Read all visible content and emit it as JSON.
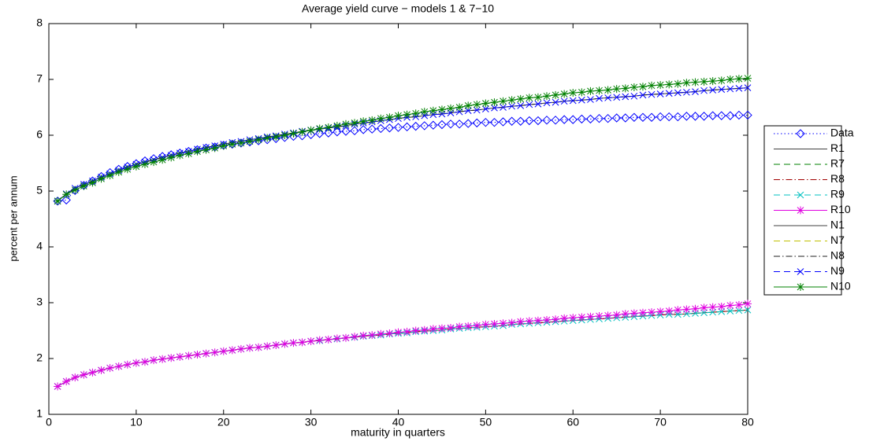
{
  "chart_data": {
    "type": "line",
    "title": "Average yield curve − models 1 & 7−10",
    "x_label": "maturity in quarters",
    "y_label": "percent per annum",
    "xlim": [
      0,
      80
    ],
    "xticks": [
      0,
      10,
      20,
      30,
      40,
      50,
      60,
      70,
      80
    ],
    "ylim": [
      1,
      8
    ],
    "yticks": [
      1,
      2,
      3,
      4,
      5,
      6,
      7,
      8
    ],
    "grid": false,
    "legend": "outside-right",
    "x": [
      1,
      2,
      3,
      4,
      5,
      6,
      7,
      8,
      9,
      10,
      11,
      12,
      13,
      14,
      15,
      16,
      17,
      18,
      19,
      20,
      21,
      22,
      23,
      24,
      25,
      26,
      27,
      28,
      29,
      30,
      31,
      32,
      33,
      34,
      35,
      36,
      37,
      38,
      39,
      40,
      41,
      42,
      43,
      44,
      45,
      46,
      47,
      48,
      49,
      50,
      51,
      52,
      53,
      54,
      55,
      56,
      57,
      58,
      59,
      60,
      61,
      62,
      63,
      64,
      65,
      66,
      67,
      68,
      69,
      70,
      71,
      72,
      73,
      74,
      75,
      76,
      77,
      78,
      79,
      80
    ],
    "series": [
      {
        "name": "Data",
        "color": "#0000ff",
        "linestyle": "dotted",
        "marker": "diamond",
        "values": [
          4.82,
          4.84,
          5.01,
          5.1,
          5.18,
          5.26,
          5.33,
          5.39,
          5.44,
          5.49,
          5.54,
          5.58,
          5.62,
          5.65,
          5.68,
          5.71,
          5.74,
          5.77,
          5.79,
          5.82,
          5.84,
          5.86,
          5.88,
          5.9,
          5.92,
          5.94,
          5.96,
          5.98,
          5.99,
          6.01,
          6.03,
          6.04,
          6.06,
          6.07,
          6.08,
          6.1,
          6.11,
          6.12,
          6.13,
          6.14,
          6.15,
          6.16,
          6.17,
          6.18,
          6.19,
          6.2,
          6.2,
          6.21,
          6.22,
          6.23,
          6.23,
          6.24,
          6.25,
          6.25,
          6.26,
          6.26,
          6.27,
          6.27,
          6.28,
          6.28,
          6.29,
          6.29,
          6.3,
          6.3,
          6.31,
          6.31,
          6.32,
          6.32,
          6.32,
          6.33,
          6.33,
          6.33,
          6.34,
          6.34,
          6.34,
          6.35,
          6.35,
          6.35,
          6.36,
          6.36
        ]
      },
      {
        "name": "R1",
        "color": "#404040",
        "linestyle": "solid",
        "marker": "none",
        "values": [
          1.5,
          1.59,
          1.66,
          1.71,
          1.75,
          1.79,
          1.83,
          1.86,
          1.89,
          1.92,
          1.94,
          1.97,
          1.99,
          2.01,
          2.03,
          2.05,
          2.07,
          2.09,
          2.11,
          2.13,
          2.15,
          2.17,
          2.19,
          2.2,
          2.22,
          2.24,
          2.26,
          2.28,
          2.29,
          2.31,
          2.32,
          2.34,
          2.35,
          2.37,
          2.38,
          2.4,
          2.41,
          2.42,
          2.44,
          2.45,
          2.46,
          2.48,
          2.49,
          2.5,
          2.51,
          2.53,
          2.54,
          2.55,
          2.56,
          2.57,
          2.58,
          2.59,
          2.61,
          2.62,
          2.63,
          2.64,
          2.65,
          2.66,
          2.67,
          2.68,
          2.69,
          2.7,
          2.71,
          2.72,
          2.73,
          2.74,
          2.75,
          2.76,
          2.77,
          2.78,
          2.79,
          2.79,
          2.8,
          2.81,
          2.82,
          2.83,
          2.84,
          2.85,
          2.86,
          2.87
        ]
      },
      {
        "name": "R7",
        "color": "#008000",
        "linestyle": "dashed",
        "marker": "none",
        "values": [
          1.5,
          1.59,
          1.66,
          1.71,
          1.75,
          1.79,
          1.83,
          1.86,
          1.89,
          1.92,
          1.94,
          1.97,
          1.99,
          2.01,
          2.03,
          2.05,
          2.07,
          2.09,
          2.11,
          2.13,
          2.15,
          2.17,
          2.19,
          2.2,
          2.22,
          2.24,
          2.26,
          2.28,
          2.29,
          2.31,
          2.32,
          2.34,
          2.35,
          2.37,
          2.38,
          2.4,
          2.41,
          2.42,
          2.44,
          2.45,
          2.46,
          2.48,
          2.49,
          2.5,
          2.51,
          2.53,
          2.54,
          2.55,
          2.56,
          2.57,
          2.58,
          2.59,
          2.61,
          2.62,
          2.63,
          2.64,
          2.65,
          2.66,
          2.67,
          2.68,
          2.69,
          2.7,
          2.71,
          2.72,
          2.73,
          2.74,
          2.75,
          2.76,
          2.77,
          2.78,
          2.79,
          2.79,
          2.8,
          2.81,
          2.82,
          2.83,
          2.84,
          2.85,
          2.86,
          2.87
        ]
      },
      {
        "name": "R8",
        "color": "#a00000",
        "linestyle": "dashdot",
        "marker": "none",
        "values": [
          1.5,
          1.59,
          1.66,
          1.71,
          1.75,
          1.79,
          1.83,
          1.86,
          1.89,
          1.92,
          1.94,
          1.97,
          1.99,
          2.01,
          2.03,
          2.05,
          2.07,
          2.09,
          2.11,
          2.13,
          2.15,
          2.17,
          2.19,
          2.2,
          2.22,
          2.24,
          2.26,
          2.28,
          2.29,
          2.31,
          2.32,
          2.34,
          2.35,
          2.37,
          2.38,
          2.4,
          2.41,
          2.42,
          2.44,
          2.45,
          2.46,
          2.48,
          2.49,
          2.5,
          2.51,
          2.53,
          2.54,
          2.55,
          2.56,
          2.57,
          2.58,
          2.59,
          2.61,
          2.62,
          2.63,
          2.64,
          2.65,
          2.66,
          2.67,
          2.68,
          2.69,
          2.7,
          2.71,
          2.72,
          2.73,
          2.74,
          2.75,
          2.76,
          2.77,
          2.78,
          2.79,
          2.79,
          2.8,
          2.81,
          2.82,
          2.83,
          2.84,
          2.85,
          2.86,
          2.87
        ]
      },
      {
        "name": "R9",
        "color": "#00c0c0",
        "linestyle": "dashed",
        "marker": "x",
        "values": [
          1.5,
          1.59,
          1.66,
          1.71,
          1.75,
          1.79,
          1.83,
          1.86,
          1.89,
          1.92,
          1.94,
          1.97,
          1.99,
          2.01,
          2.03,
          2.05,
          2.07,
          2.09,
          2.11,
          2.13,
          2.15,
          2.17,
          2.19,
          2.2,
          2.22,
          2.24,
          2.26,
          2.28,
          2.29,
          2.31,
          2.32,
          2.34,
          2.35,
          2.37,
          2.38,
          2.4,
          2.41,
          2.42,
          2.44,
          2.45,
          2.46,
          2.48,
          2.49,
          2.5,
          2.51,
          2.53,
          2.54,
          2.55,
          2.56,
          2.57,
          2.58,
          2.59,
          2.61,
          2.62,
          2.63,
          2.64,
          2.65,
          2.66,
          2.67,
          2.68,
          2.69,
          2.7,
          2.71,
          2.72,
          2.73,
          2.74,
          2.75,
          2.76,
          2.77,
          2.78,
          2.79,
          2.79,
          2.8,
          2.81,
          2.82,
          2.83,
          2.84,
          2.85,
          2.86,
          2.87
        ]
      },
      {
        "name": "R10",
        "color": "#e000e0",
        "linestyle": "solid",
        "marker": "asterisk",
        "values": [
          1.5,
          1.59,
          1.66,
          1.71,
          1.75,
          1.79,
          1.83,
          1.86,
          1.89,
          1.92,
          1.94,
          1.97,
          1.99,
          2.01,
          2.03,
          2.05,
          2.07,
          2.09,
          2.11,
          2.13,
          2.15,
          2.17,
          2.19,
          2.2,
          2.22,
          2.24,
          2.26,
          2.28,
          2.29,
          2.31,
          2.33,
          2.34,
          2.36,
          2.37,
          2.39,
          2.41,
          2.42,
          2.44,
          2.45,
          2.47,
          2.48,
          2.5,
          2.51,
          2.53,
          2.54,
          2.55,
          2.57,
          2.58,
          2.59,
          2.61,
          2.62,
          2.63,
          2.64,
          2.66,
          2.67,
          2.68,
          2.69,
          2.7,
          2.72,
          2.73,
          2.74,
          2.75,
          2.76,
          2.77,
          2.78,
          2.8,
          2.81,
          2.82,
          2.83,
          2.84,
          2.85,
          2.87,
          2.88,
          2.89,
          2.91,
          2.92,
          2.93,
          2.95,
          2.96,
          2.98
        ]
      },
      {
        "name": "N1",
        "color": "#404040",
        "linestyle": "solid",
        "marker": "none",
        "values": [
          4.82,
          4.95,
          5.05,
          5.12,
          5.18,
          5.25,
          5.31,
          5.37,
          5.43,
          5.48,
          5.52,
          5.56,
          5.6,
          5.64,
          5.68,
          5.71,
          5.75,
          5.78,
          5.81,
          5.84,
          5.87,
          5.89,
          5.92,
          5.94,
          5.97,
          5.99,
          6.02,
          6.04,
          6.07,
          6.09,
          6.11,
          6.13,
          6.15,
          6.17,
          6.2,
          6.22,
          6.24,
          6.26,
          6.28,
          6.3,
          6.32,
          6.33,
          6.35,
          6.37,
          6.38,
          6.4,
          6.42,
          6.44,
          6.45,
          6.47,
          6.49,
          6.5,
          6.52,
          6.53,
          6.55,
          6.56,
          6.58,
          6.59,
          6.61,
          6.62,
          6.63,
          6.64,
          6.66,
          6.67,
          6.68,
          6.69,
          6.7,
          6.72,
          6.73,
          6.74,
          6.75,
          6.76,
          6.77,
          6.78,
          6.8,
          6.81,
          6.82,
          6.83,
          6.84,
          6.85
        ]
      },
      {
        "name": "N7",
        "color": "#c0c000",
        "linestyle": "dashed",
        "marker": "none",
        "values": [
          4.82,
          4.95,
          5.05,
          5.12,
          5.18,
          5.25,
          5.31,
          5.37,
          5.43,
          5.48,
          5.52,
          5.56,
          5.6,
          5.64,
          5.68,
          5.71,
          5.75,
          5.78,
          5.81,
          5.84,
          5.87,
          5.89,
          5.92,
          5.94,
          5.97,
          5.99,
          6.02,
          6.04,
          6.07,
          6.09,
          6.11,
          6.13,
          6.15,
          6.17,
          6.2,
          6.22,
          6.24,
          6.26,
          6.28,
          6.3,
          6.32,
          6.33,
          6.35,
          6.37,
          6.38,
          6.4,
          6.42,
          6.44,
          6.45,
          6.47,
          6.49,
          6.5,
          6.52,
          6.53,
          6.55,
          6.56,
          6.58,
          6.59,
          6.61,
          6.62,
          6.63,
          6.64,
          6.66,
          6.67,
          6.68,
          6.69,
          6.7,
          6.72,
          6.73,
          6.74,
          6.75,
          6.76,
          6.77,
          6.78,
          6.8,
          6.81,
          6.82,
          6.83,
          6.84,
          6.85
        ]
      },
      {
        "name": "N8",
        "color": "#202020",
        "linestyle": "dashdot",
        "marker": "none",
        "values": [
          4.82,
          4.95,
          5.05,
          5.12,
          5.18,
          5.25,
          5.31,
          5.37,
          5.43,
          5.48,
          5.52,
          5.56,
          5.6,
          5.64,
          5.68,
          5.71,
          5.75,
          5.78,
          5.81,
          5.84,
          5.87,
          5.89,
          5.92,
          5.94,
          5.97,
          5.99,
          6.02,
          6.04,
          6.07,
          6.09,
          6.11,
          6.13,
          6.15,
          6.17,
          6.2,
          6.22,
          6.24,
          6.26,
          6.28,
          6.3,
          6.32,
          6.33,
          6.35,
          6.37,
          6.38,
          6.4,
          6.42,
          6.44,
          6.45,
          6.47,
          6.49,
          6.5,
          6.52,
          6.53,
          6.55,
          6.56,
          6.58,
          6.59,
          6.61,
          6.62,
          6.63,
          6.64,
          6.66,
          6.67,
          6.68,
          6.69,
          6.7,
          6.72,
          6.73,
          6.74,
          6.75,
          6.76,
          6.77,
          6.78,
          6.8,
          6.81,
          6.82,
          6.83,
          6.84,
          6.85
        ]
      },
      {
        "name": "N9",
        "color": "#0000ff",
        "linestyle": "dashed",
        "marker": "x",
        "values": [
          4.82,
          4.95,
          5.05,
          5.12,
          5.18,
          5.25,
          5.31,
          5.37,
          5.43,
          5.48,
          5.52,
          5.56,
          5.6,
          5.64,
          5.68,
          5.71,
          5.75,
          5.78,
          5.81,
          5.84,
          5.87,
          5.89,
          5.92,
          5.94,
          5.97,
          5.99,
          6.02,
          6.04,
          6.07,
          6.09,
          6.11,
          6.13,
          6.15,
          6.17,
          6.2,
          6.22,
          6.24,
          6.26,
          6.28,
          6.3,
          6.32,
          6.33,
          6.35,
          6.37,
          6.38,
          6.4,
          6.42,
          6.44,
          6.45,
          6.47,
          6.49,
          6.5,
          6.52,
          6.53,
          6.55,
          6.56,
          6.58,
          6.59,
          6.61,
          6.62,
          6.63,
          6.64,
          6.66,
          6.67,
          6.68,
          6.69,
          6.7,
          6.72,
          6.73,
          6.74,
          6.75,
          6.76,
          6.77,
          6.78,
          6.8,
          6.81,
          6.82,
          6.83,
          6.84,
          6.85
        ]
      },
      {
        "name": "N10",
        "color": "#008000",
        "linestyle": "solid",
        "marker": "asterisk",
        "values": [
          4.82,
          4.94,
          5.02,
          5.09,
          5.15,
          5.22,
          5.28,
          5.34,
          5.39,
          5.44,
          5.48,
          5.52,
          5.56,
          5.6,
          5.64,
          5.67,
          5.71,
          5.74,
          5.77,
          5.81,
          5.84,
          5.86,
          5.89,
          5.92,
          5.95,
          5.97,
          6.0,
          6.03,
          6.06,
          6.09,
          6.12,
          6.14,
          6.17,
          6.2,
          6.22,
          6.25,
          6.27,
          6.3,
          6.32,
          6.35,
          6.37,
          6.39,
          6.42,
          6.44,
          6.46,
          6.48,
          6.5,
          6.53,
          6.55,
          6.57,
          6.59,
          6.61,
          6.63,
          6.65,
          6.67,
          6.68,
          6.7,
          6.72,
          6.74,
          6.76,
          6.77,
          6.79,
          6.8,
          6.81,
          6.83,
          6.84,
          6.86,
          6.87,
          6.89,
          6.9,
          6.91,
          6.92,
          6.94,
          6.95,
          6.96,
          6.97,
          6.98,
          7.0,
          7.01,
          7.02
        ]
      }
    ]
  }
}
